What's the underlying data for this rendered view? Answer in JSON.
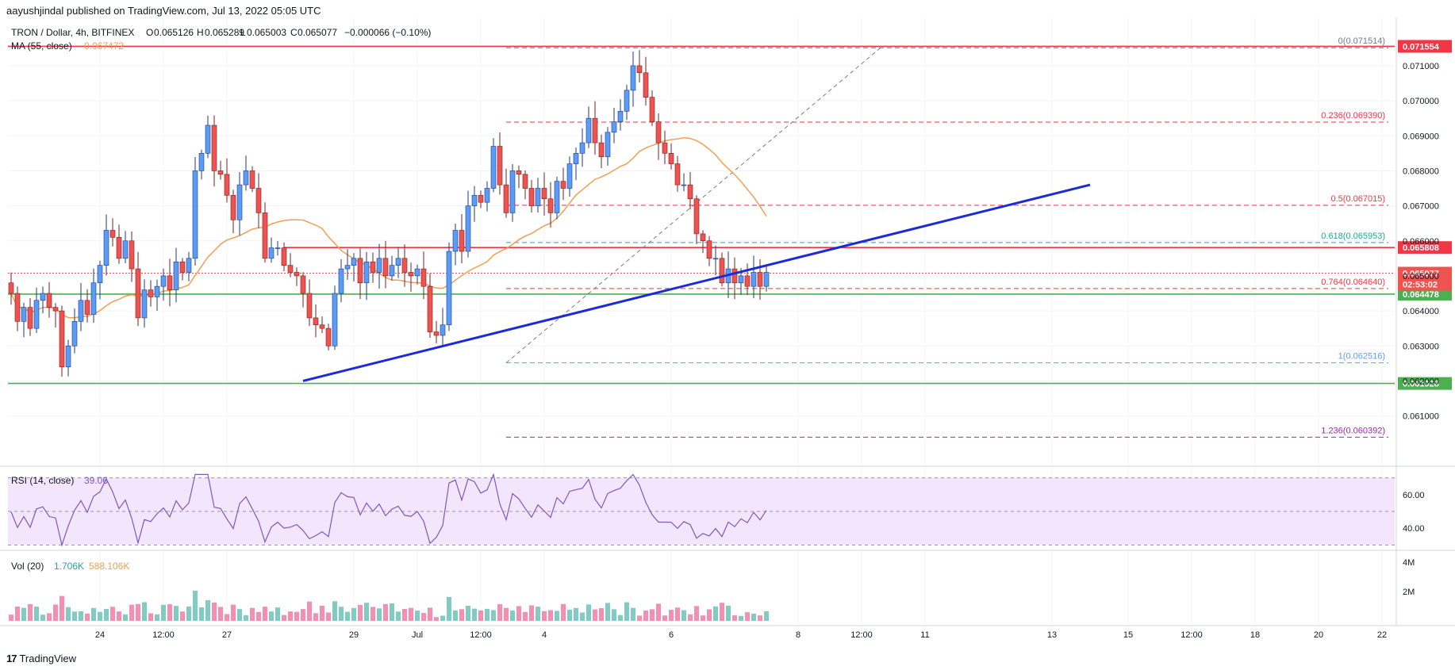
{
  "header": {
    "publisher_line": "aayushjindal published on TradingView.com, Jul 13, 2022 05:05 UTC"
  },
  "footer": {
    "logo_mark": "17",
    "brand": "TradingView"
  },
  "legend": {
    "symbol": "TRON / Dollar, 4h, BITFINEX",
    "ohlc": [
      {
        "key": "O",
        "value": "0.065126"
      },
      {
        "key": "H",
        "value": "0.065289"
      },
      {
        "key": "L",
        "value": "0.065003"
      },
      {
        "key": "C",
        "value": "0.065077"
      }
    ],
    "change": "−0.000066 (−0.10%)",
    "ma_label": "MA (55, close)",
    "ma_value": "0.067472",
    "rsi_label": "RSI (14, close)",
    "rsi_value": "39.06",
    "vol_label": "Vol (20)",
    "vol_value": "1.706K",
    "vol_ma_value": "588.106K"
  },
  "colors": {
    "up": "#5b9cf6",
    "down": "#ef5350",
    "ma": "#f0a050",
    "trendline": "#1c2bd6",
    "resistance": "#f23645",
    "support": "#4caf50",
    "fib_red": "#f23645",
    "fib_green": "#26a69a",
    "fib_blue": "#5b9cf6",
    "fib_purple": "#9c27b0",
    "rsi_line": "#7e57c2",
    "rsi_band": "#f3e5fb",
    "vol_up": "#80cbc4",
    "vol_down": "#f48fb1"
  },
  "chart_data": {
    "type": "candlestick",
    "title": "TRON / Dollar, 4h, BITFINEX",
    "price_axis": {
      "ticks": [
        "0.071000",
        "0.070000",
        "0.069000",
        "0.068000",
        "0.067000",
        "0.066000",
        "0.065000",
        "0.064000",
        "0.063000",
        "0.062000",
        "0.061000"
      ],
      "range": [
        0.0597,
        0.0717
      ]
    },
    "rsi_axis": {
      "ticks": [
        "60.00",
        "40.00"
      ],
      "range": [
        25,
        75
      ]
    },
    "volume_axis": {
      "ticks": [
        "4M",
        "2M"
      ]
    },
    "time_axis": {
      "labels": [
        {
          "text": "24",
          "bar": 14
        },
        {
          "text": "12:00",
          "bar": 24
        },
        {
          "text": "27",
          "bar": 34
        },
        {
          "text": "29",
          "bar": 54
        },
        {
          "text": "Jul",
          "bar": 64
        },
        {
          "text": "12:00",
          "bar": 74
        },
        {
          "text": "4",
          "bar": 84
        },
        {
          "text": "6",
          "bar": 104
        },
        {
          "text": "8",
          "bar": 124
        },
        {
          "text": "12:00",
          "bar": 134
        },
        {
          "text": "11",
          "bar": 144
        },
        {
          "text": "13",
          "bar": 164
        },
        {
          "text": "15",
          "bar": 176
        },
        {
          "text": "12:00",
          "bar": 186
        },
        {
          "text": "18",
          "bar": 196
        },
        {
          "text": "20",
          "bar": 206
        },
        {
          "text": "22",
          "bar": 216
        }
      ]
    },
    "closes": [
      0.0645,
      0.0637,
      0.0641,
      0.0635,
      0.0643,
      0.0645,
      0.0641,
      0.064,
      0.0624,
      0.063,
      0.0637,
      0.0643,
      0.0639,
      0.0648,
      0.0653,
      0.0663,
      0.0661,
      0.0655,
      0.066,
      0.0652,
      0.0638,
      0.0646,
      0.0644,
      0.0647,
      0.065,
      0.0646,
      0.0654,
      0.0651,
      0.0655,
      0.068,
      0.0685,
      0.0693,
      0.068,
      0.0679,
      0.0673,
      0.0666,
      0.0676,
      0.068,
      0.0675,
      0.0668,
      0.0655,
      0.0658,
      0.0658,
      0.0653,
      0.0651,
      0.065,
      0.0645,
      0.0638,
      0.0636,
      0.0635,
      0.063,
      0.0645,
      0.0652,
      0.0653,
      0.0655,
      0.0648,
      0.0654,
      0.0651,
      0.0655,
      0.065,
      0.0653,
      0.0655,
      0.0651,
      0.065,
      0.0652,
      0.0647,
      0.0634,
      0.0633,
      0.0636,
      0.0657,
      0.0663,
      0.0657,
      0.067,
      0.0673,
      0.0671,
      0.0675,
      0.0687,
      0.0676,
      0.0668,
      0.068,
      0.0679,
      0.0675,
      0.067,
      0.0675,
      0.0672,
      0.0668,
      0.0677,
      0.0675,
      0.0682,
      0.0685,
      0.0688,
      0.0695,
      0.0688,
      0.0684,
      0.0691,
      0.0694,
      0.0697,
      0.0703,
      0.071,
      0.0708,
      0.0701,
      0.0694,
      0.0688,
      0.0685,
      0.0682,
      0.0676,
      0.0676,
      0.0672,
      0.0662,
      0.066,
      0.0655,
      0.0655,
      0.0648,
      0.0652,
      0.0648,
      0.065,
      0.0647,
      0.0651,
      0.0647,
      0.0651
    ],
    "ma55_value": 0.067472,
    "levels": [
      {
        "name": "resistance-top",
        "price": 0.071554,
        "label": "0.071554",
        "kind": "resistance"
      },
      {
        "name": "resistance-mid",
        "price": 0.065808,
        "label": "0.065808",
        "kind": "resistance"
      },
      {
        "name": "support-near",
        "price": 0.064478,
        "label": "0.064478",
        "kind": "support"
      },
      {
        "name": "support-low",
        "price": 0.061928,
        "label": "0.061928",
        "kind": "support"
      }
    ],
    "last_price": {
      "price": 0.065077,
      "label": "0.065077",
      "countdown": "02:53:02"
    },
    "fib": [
      {
        "level": "0",
        "price": 0.071514,
        "label": "0(0.071514)",
        "color": "gray"
      },
      {
        "level": "0.236",
        "price": 0.06939,
        "label": "0.236(0.069390)",
        "color": "red"
      },
      {
        "level": "0.5",
        "price": 0.067015,
        "label": "0.5(0.067015)",
        "color": "red"
      },
      {
        "level": "0.618",
        "price": 0.065953,
        "label": "0.618(0.065953)",
        "color": "green"
      },
      {
        "level": "0.764",
        "price": 0.06464,
        "label": "0.764(0.064640)",
        "color": "red"
      },
      {
        "level": "1",
        "price": 0.062516,
        "label": "1(0.062516)",
        "color": "blue"
      },
      {
        "level": "1.236",
        "price": 0.060392,
        "label": "1.236(0.060392)",
        "color": "purple"
      }
    ],
    "trendline": {
      "from": {
        "bar": 46,
        "price": 0.062
      },
      "to": {
        "bar": 170,
        "price": 0.0676
      }
    },
    "fib_anchor": {
      "from": {
        "bar": 78,
        "price": 0.062516
      },
      "to": {
        "bar": 137,
        "price": 0.071514
      }
    }
  }
}
